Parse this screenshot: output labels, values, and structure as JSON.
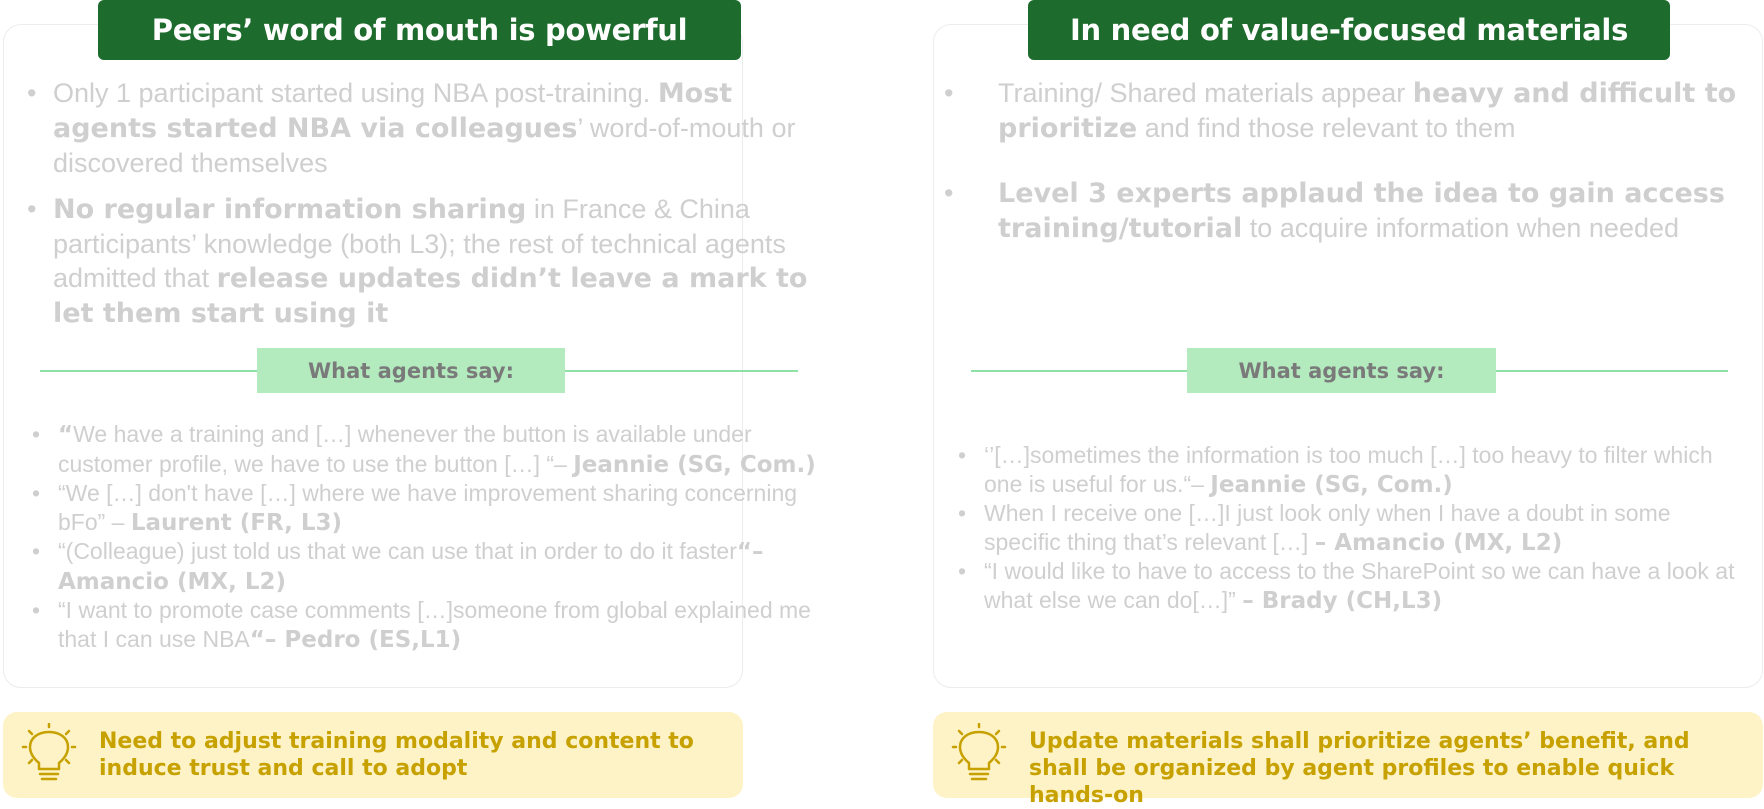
{
  "left": {
    "title": "Peers’ word of mouth is powerful",
    "bullets": [
      [
        {
          "t": "Only 1 participant started using NBA post-training. ",
          "b": false
        },
        {
          "t": "Most agents started NBA via colleagues",
          "b": true
        },
        {
          "t": "’ word-of-mouth or discovered themselves",
          "b": false
        }
      ],
      [
        {
          "t": "No regular information sharing",
          "b": true
        },
        {
          "t": " in France & China participants’ knowledge (both L3); the rest of technical agents admitted that ",
          "b": false
        },
        {
          "t": "release updates didn’t leave a mark to let them start using it",
          "b": true
        }
      ]
    ],
    "say_label": "What agents say:",
    "quotes": [
      [
        {
          "t": "“",
          "b": true
        },
        {
          "t": "We have a training and […] whenever the button is available under customer profile, we have to use the button […] “– ",
          "b": false
        },
        {
          "t": "Jeannie (SG, Com.)",
          "b": true
        }
      ],
      [
        {
          "t": "“We […] don't have […] where we have improvement sharing concerning bFo” – ",
          "b": false
        },
        {
          "t": "Laurent  (FR, L3)",
          "b": true
        }
      ],
      [
        {
          "t": "“(Colleague) just told us that we can use that in order to do it faster",
          "b": false
        },
        {
          "t": "“– Amancio (MX, L2)",
          "b": true
        }
      ],
      [
        {
          "t": "“I want to promote case comments […]someone from global explained me that I can use NBA",
          "b": false
        },
        {
          "t": "“– Pedro (ES,L1)",
          "b": true
        }
      ]
    ],
    "insight": "Need to adjust training modality and content to induce trust and call to adopt"
  },
  "right": {
    "title": "In need of value-focused materials",
    "bullets": [
      [
        {
          "t": "Training/ Shared materials appear ",
          "b": false
        },
        {
          "t": "heavy and difficult to prioritize",
          "b": true
        },
        {
          "t": " and find those relevant to them",
          "b": false
        }
      ],
      [
        {
          "t": "Level 3 experts applaud the idea to gain access training/tutorial",
          "b": true
        },
        {
          "t": "  to acquire information when needed",
          "b": false
        }
      ]
    ],
    "say_label": "What agents say:",
    "quotes": [
      [
        {
          "t": "‘’[…]sometimes the information is too much […] too heavy to filter which one is useful for us.“– ",
          "b": false
        },
        {
          "t": "Jeannie  (SG, Com.)",
          "b": true
        }
      ],
      [
        {
          "t": "When I receive one […]I just look only when I have a doubt in some specific thing that’s relevant […] ",
          "b": false
        },
        {
          "t": "– Amancio (MX, L2)",
          "b": true
        }
      ],
      [
        {
          "t": "“I would like to have to access to the SharePoint so we can have a look at what else we can do[…]” ",
          "b": false
        },
        {
          "t": "– Brady (CH,L3)",
          "b": true
        }
      ]
    ],
    "insight": "Update materials shall prioritize agents’ benefit, and shall be organized by agent profiles to enable quick hands-on"
  },
  "colors": {
    "title_bg": "#1e6b2e",
    "say_bg": "#b3ebbf",
    "insight_bg": "#fdf3c6",
    "insight_text": "#c7a100",
    "faded_text": "#cfcfcf"
  },
  "icons": [
    "lightbulb-icon"
  ]
}
